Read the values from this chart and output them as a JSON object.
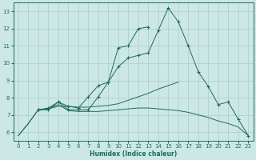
{
  "xlabel": "Humidex (Indice chaleur)",
  "bg_color": "#cce8e4",
  "line_color": "#1e6b5e",
  "grid_color": "#aaccc8",
  "xlim": [
    -0.5,
    23.5
  ],
  "ylim": [
    5.5,
    13.5
  ],
  "xticks": [
    0,
    1,
    2,
    3,
    4,
    5,
    6,
    7,
    8,
    9,
    10,
    11,
    12,
    13,
    14,
    15,
    16,
    17,
    18,
    19,
    20,
    21,
    22,
    23
  ],
  "yticks": [
    6,
    7,
    8,
    9,
    10,
    11,
    12,
    13
  ],
  "lines": [
    {
      "x": [
        0,
        1,
        2,
        3,
        4,
        5,
        6,
        7,
        8,
        9,
        10,
        11,
        12,
        13,
        14,
        15,
        16
      ],
      "y": [
        5.8,
        6.5,
        7.3,
        7.35,
        7.5,
        7.5,
        7.45,
        7.45,
        7.5,
        7.55,
        7.65,
        7.85,
        8.05,
        8.25,
        8.5,
        8.7,
        8.9
      ],
      "marker": false
    },
    {
      "x": [
        0,
        1,
        2,
        3,
        4,
        5,
        6,
        7,
        8,
        9,
        10,
        11,
        12,
        13,
        14,
        15,
        16,
        17,
        18,
        19,
        20,
        21,
        22,
        23
      ],
      "y": [
        5.8,
        6.5,
        7.3,
        7.35,
        7.6,
        7.25,
        7.2,
        7.2,
        7.2,
        7.25,
        7.3,
        7.35,
        7.4,
        7.4,
        7.35,
        7.3,
        7.25,
        7.15,
        7.0,
        6.85,
        6.65,
        6.5,
        6.3,
        5.8
      ],
      "marker": false
    },
    {
      "x": [
        2,
        3,
        4,
        5,
        6,
        7,
        8,
        9,
        10,
        11,
        12,
        13
      ],
      "y": [
        7.3,
        7.4,
        7.75,
        7.5,
        7.4,
        8.05,
        8.7,
        8.9,
        10.9,
        11.0,
        12.0,
        12.1
      ],
      "marker": true
    },
    {
      "x": [
        2,
        3,
        4,
        5,
        6,
        7,
        8,
        9,
        10,
        11,
        12,
        13,
        14,
        15,
        16,
        17,
        18,
        19,
        20,
        21,
        22,
        23
      ],
      "y": [
        7.3,
        7.3,
        7.75,
        7.3,
        7.3,
        7.3,
        8.05,
        8.9,
        9.8,
        10.3,
        10.45,
        10.6,
        11.9,
        13.2,
        12.4,
        11.0,
        9.5,
        8.65,
        7.6,
        7.75,
        6.75,
        5.8
      ],
      "marker": true
    }
  ]
}
